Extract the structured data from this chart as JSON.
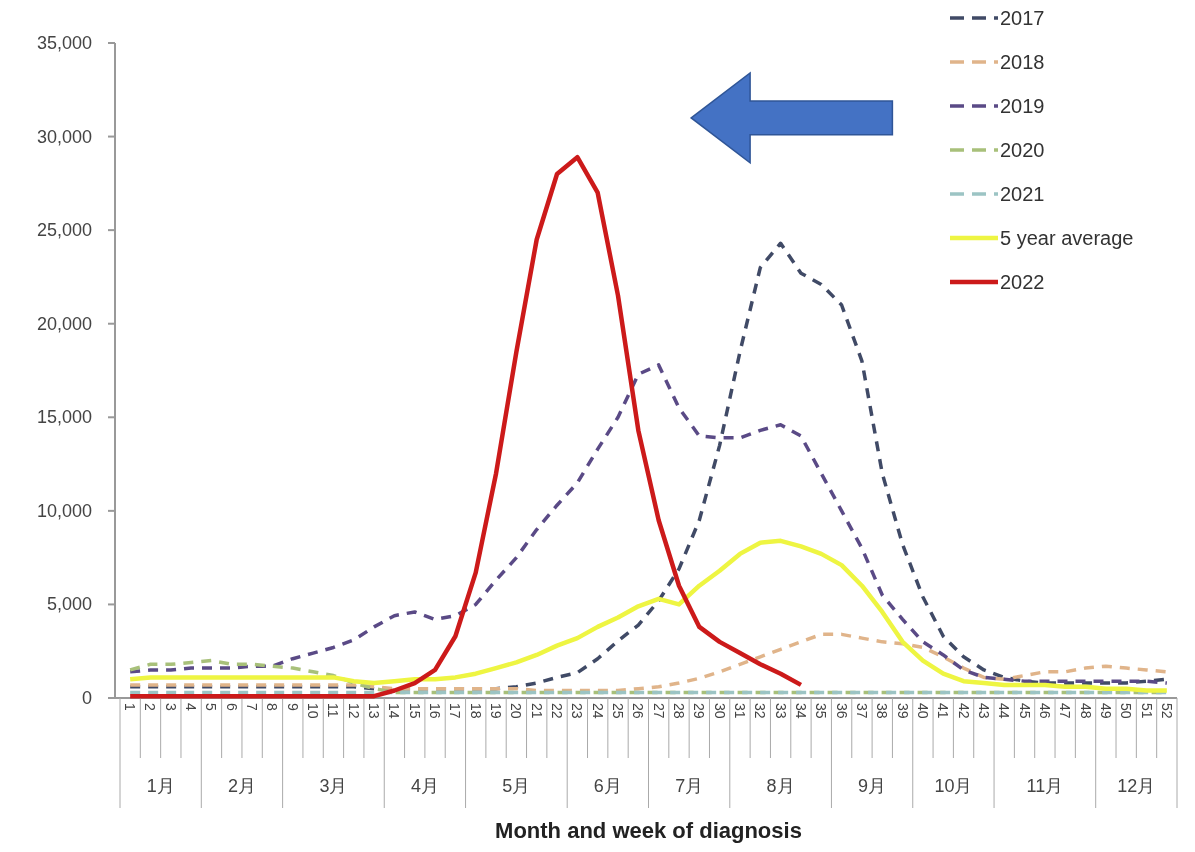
{
  "chart_data": {
    "type": "line",
    "xlabel": "Month and week of diagnosis",
    "categories": [
      "1",
      "2",
      "3",
      "4",
      "5",
      "6",
      "7",
      "8",
      "9",
      "10",
      "11",
      "12",
      "13",
      "14",
      "15",
      "16",
      "17",
      "18",
      "19",
      "20",
      "21",
      "22",
      "23",
      "24",
      "25",
      "26",
      "27",
      "28",
      "29",
      "30",
      "31",
      "32",
      "33",
      "34",
      "35",
      "36",
      "37",
      "38",
      "39",
      "40",
      "41",
      "42",
      "43",
      "44",
      "45",
      "46",
      "47",
      "48",
      "49",
      "50",
      "51",
      "52"
    ],
    "ylim": [
      0,
      35000
    ],
    "yticks": [
      {
        "value": 0,
        "label": "0"
      },
      {
        "value": 5000,
        "label": "5,000"
      },
      {
        "value": 10000,
        "label": "10,000"
      },
      {
        "value": 15000,
        "label": "15,000"
      },
      {
        "value": 20000,
        "label": "20,000"
      },
      {
        "value": 25000,
        "label": "25,000"
      },
      {
        "value": 30000,
        "label": "30,000"
      },
      {
        "value": 35000,
        "label": "35,000"
      }
    ],
    "grid": false,
    "legend": "top right",
    "marker": "none",
    "series": [
      {
        "name": "2017",
        "color": "#404a66",
        "line_style": "dashed",
        "values": [
          600,
          600,
          600,
          600,
          600,
          600,
          600,
          600,
          600,
          600,
          600,
          600,
          500,
          500,
          500,
          500,
          500,
          500,
          500,
          600,
          800,
          1100,
          1350,
          2100,
          3050,
          3900,
          5200,
          6900,
          9500,
          13500,
          18500,
          23000,
          24300,
          22700,
          22100,
          21000,
          18000,
          12000,
          8200,
          5400,
          3300,
          2200,
          1500,
          1100,
          900,
          800,
          800,
          800,
          800,
          800,
          900,
          1000
        ]
      },
      {
        "name": "2018",
        "color": "#e0b48a",
        "line_style": "dashed",
        "values": [
          700,
          700,
          700,
          700,
          700,
          700,
          700,
          700,
          700,
          700,
          700,
          700,
          600,
          500,
          500,
          500,
          500,
          500,
          500,
          500,
          400,
          400,
          400,
          400,
          400,
          500,
          600,
          800,
          1050,
          1400,
          1800,
          2200,
          2600,
          3000,
          3400,
          3400,
          3200,
          3000,
          2900,
          2700,
          2200,
          1600,
          1100,
          1000,
          1200,
          1400,
          1400,
          1600,
          1700,
          1600,
          1500,
          1400
        ]
      },
      {
        "name": "2019",
        "color": "#5a4a86",
        "line_style": "dashed",
        "values": [
          1400,
          1500,
          1500,
          1600,
          1600,
          1600,
          1700,
          1700,
          2100,
          2400,
          2700,
          3100,
          3800,
          4400,
          4600,
          4200,
          4400,
          5000,
          6300,
          7500,
          9000,
          10300,
          11500,
          13300,
          15000,
          17300,
          17800,
          15500,
          14000,
          13900,
          13900,
          14300,
          14600,
          14000,
          12000,
          10000,
          8000,
          5500,
          4200,
          3000,
          2300,
          1500,
          1100,
          1000,
          900,
          900,
          900,
          900,
          900,
          900,
          900,
          800
        ]
      },
      {
        "name": "2020",
        "color": "#a8c07a",
        "line_style": "dashed",
        "values": [
          1500,
          1800,
          1800,
          1900,
          2000,
          1800,
          1800,
          1700,
          1600,
          1400,
          1200,
          800,
          500,
          300,
          300,
          300,
          300,
          300,
          300,
          300,
          300,
          300,
          300,
          300,
          300,
          300,
          300,
          300,
          300,
          300,
          300,
          300,
          300,
          300,
          300,
          300,
          300,
          300,
          300,
          300,
          300,
          300,
          300,
          300,
          300,
          300,
          300,
          300,
          300,
          300,
          300,
          300
        ]
      },
      {
        "name": "2021",
        "color": "#9cc4c4",
        "line_style": "dashed",
        "values": [
          300,
          300,
          300,
          300,
          300,
          300,
          300,
          300,
          300,
          300,
          300,
          300,
          300,
          300,
          300,
          300,
          300,
          300,
          300,
          300,
          300,
          300,
          300,
          300,
          300,
          300,
          300,
          300,
          300,
          300,
          300,
          300,
          300,
          300,
          300,
          300,
          300,
          300,
          300,
          300,
          300,
          300,
          300,
          300,
          300,
          300,
          300,
          300,
          300,
          300,
          300,
          300
        ]
      },
      {
        "name": "5 year average",
        "color": "#eef542",
        "line_style": "solid",
        "values": [
          1000,
          1100,
          1100,
          1100,
          1100,
          1100,
          1100,
          1100,
          1100,
          1100,
          1100,
          900,
          800,
          900,
          1000,
          1000,
          1100,
          1300,
          1600,
          1900,
          2300,
          2800,
          3200,
          3800,
          4300,
          4900,
          5300,
          5000,
          6000,
          6800,
          7700,
          8300,
          8400,
          8100,
          7700,
          7100,
          6000,
          4600,
          3000,
          2000,
          1300,
          900,
          800,
          700,
          700,
          700,
          600,
          600,
          500,
          500,
          400,
          400
        ]
      },
      {
        "name": "2022",
        "color": "#cc1a1a",
        "line_style": "solid",
        "values": [
          100,
          100,
          100,
          100,
          100,
          100,
          100,
          100,
          100,
          100,
          100,
          100,
          100,
          400,
          800,
          1500,
          3300,
          6700,
          12000,
          18500,
          24500,
          28000,
          28900,
          27000,
          21500,
          14300,
          9500,
          6000,
          3800,
          3000,
          2400,
          1800,
          1300,
          700,
          null,
          null,
          null,
          null,
          null,
          null,
          null,
          null,
          null,
          null,
          null,
          null,
          null,
          null,
          null,
          null,
          null,
          null
        ]
      }
    ],
    "annotations": [
      "1月",
      "2月",
      "3月",
      "4月",
      "5月",
      "6月",
      "7月",
      "8月",
      "9月",
      "10月",
      "11月",
      "12月"
    ]
  }
}
